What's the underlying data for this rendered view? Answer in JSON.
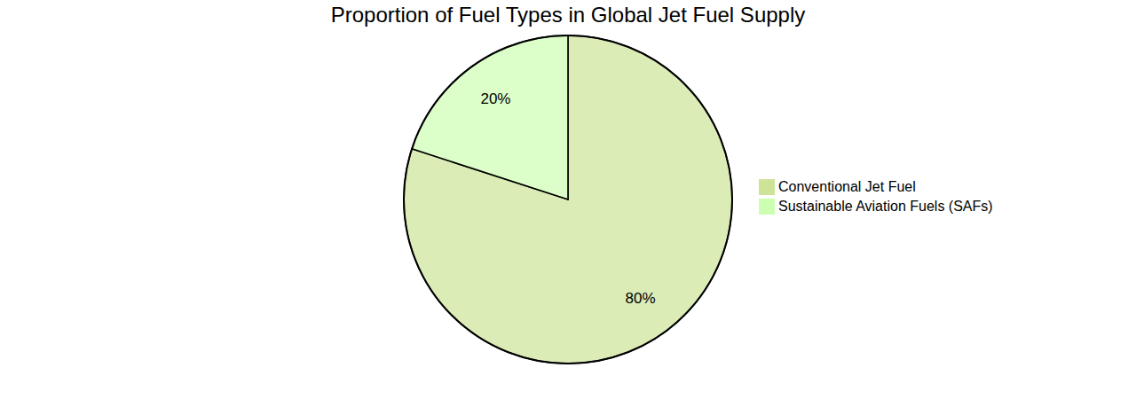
{
  "chart_data": {
    "type": "pie",
    "title": "Proportion of Fuel Types in Global Jet Fuel Supply",
    "categories": [
      "Conventional Jet Fuel",
      "Sustainable Aviation Fuels (SAFs)"
    ],
    "values": [
      80,
      20
    ],
    "value_labels": [
      "80%",
      "20%"
    ],
    "colors": [
      "#cde498",
      "#cdffb2"
    ],
    "legend": "right",
    "data_labels": true
  }
}
